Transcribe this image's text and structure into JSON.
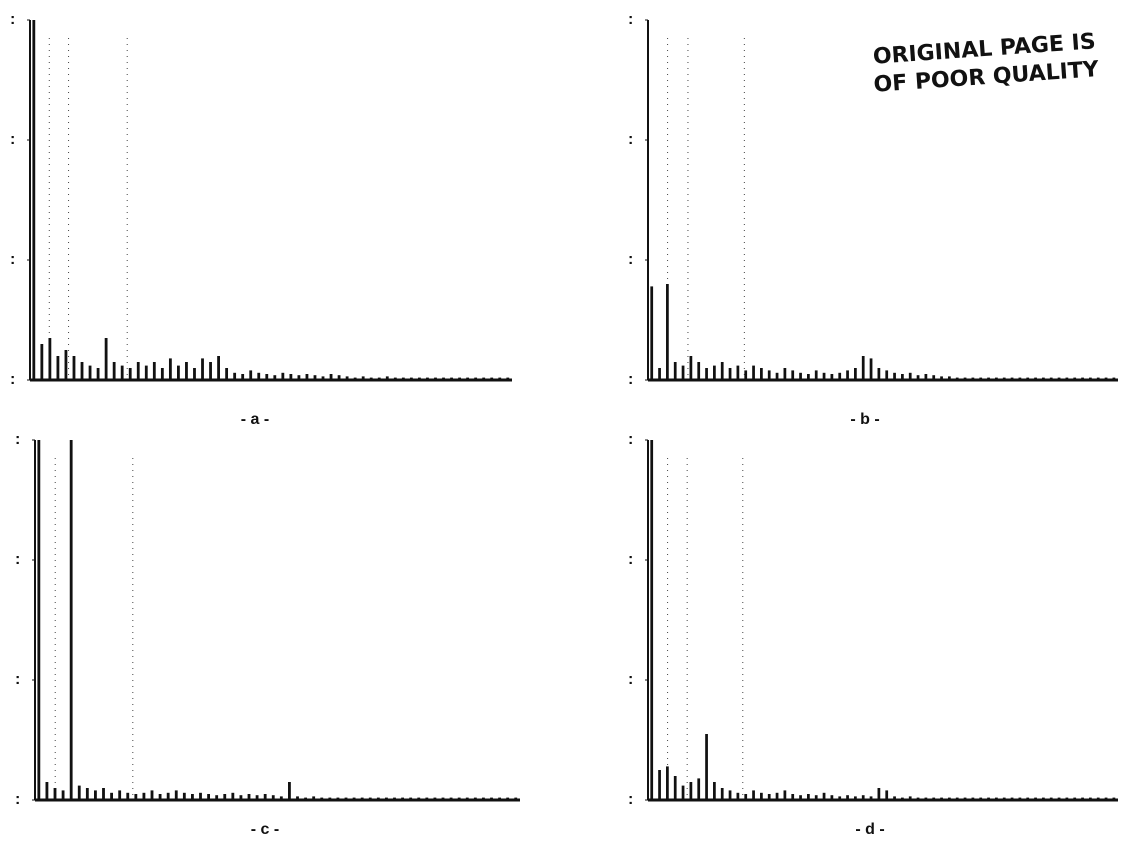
{
  "chart_data": [
    {
      "type": "bar",
      "caption": "- a -",
      "values": [
        3,
        0.3,
        0.35,
        0.2,
        0.25,
        0.2,
        0.15,
        0.12,
        0.1,
        0.35,
        0.15,
        0.12,
        0.1,
        0.15,
        0.12,
        0.15,
        0.1,
        0.18,
        0.12,
        0.15,
        0.1,
        0.18,
        0.15,
        0.2,
        0.1,
        0.06,
        0.05,
        0.08,
        0.06,
        0.05,
        0.04,
        0.06,
        0.05,
        0.04,
        0.05,
        0.04,
        0.03,
        0.05,
        0.04,
        0.03,
        0.02,
        0.03,
        0.02,
        0.02,
        0.03,
        0.02,
        0.02,
        0.02,
        0.02,
        0.02,
        0.02,
        0.02,
        0.02,
        0.02,
        0.02,
        0.02,
        0.02,
        0.02,
        0.02,
        0.02
      ],
      "xlim": [
        0,
        60
      ],
      "ylim": [
        0,
        3
      ],
      "vlines": [
        2.4,
        4.8,
        12.1
      ],
      "yticks": [
        {
          "value": 0,
          "label": ":"
        },
        {
          "value": 1,
          "label": ":"
        },
        {
          "value": 2,
          "label": ":"
        },
        {
          "value": 3,
          "label": ":"
        }
      ],
      "color": "#111"
    },
    {
      "type": "bar",
      "caption": "- b -",
      "values": [
        0.78,
        0.1,
        0.8,
        0.15,
        0.12,
        0.2,
        0.15,
        0.1,
        0.12,
        0.15,
        0.1,
        0.12,
        0.08,
        0.12,
        0.1,
        0.08,
        0.06,
        0.1,
        0.08,
        0.06,
        0.05,
        0.08,
        0.06,
        0.05,
        0.06,
        0.08,
        0.1,
        0.2,
        0.18,
        0.1,
        0.08,
        0.06,
        0.05,
        0.06,
        0.04,
        0.05,
        0.04,
        0.03,
        0.03,
        0.02,
        0.02,
        0.02,
        0.02,
        0.02,
        0.02,
        0.02,
        0.02,
        0.02,
        0.02,
        0.02,
        0.02,
        0.02,
        0.02,
        0.02,
        0.02,
        0.02,
        0.02,
        0.02,
        0.02,
        0.02
      ],
      "xlim": [
        0,
        60
      ],
      "ylim": [
        0,
        3
      ],
      "vlines": [
        2.5,
        5.1,
        12.3
      ],
      "yticks": [
        {
          "value": 0,
          "label": ":"
        },
        {
          "value": 1,
          "label": ":"
        },
        {
          "value": 2,
          "label": ":"
        },
        {
          "value": 3,
          "label": ":"
        }
      ],
      "color": "#111"
    },
    {
      "type": "bar",
      "caption": "- c -",
      "values": [
        3,
        0.15,
        0.1,
        0.08,
        3,
        0.12,
        0.1,
        0.08,
        0.1,
        0.06,
        0.08,
        0.06,
        0.05,
        0.06,
        0.08,
        0.05,
        0.06,
        0.08,
        0.06,
        0.05,
        0.06,
        0.05,
        0.04,
        0.05,
        0.06,
        0.04,
        0.05,
        0.04,
        0.05,
        0.04,
        0.03,
        0.15,
        0.03,
        0.02,
        0.03,
        0.02,
        0.02,
        0.02,
        0.02,
        0.02,
        0.02,
        0.02,
        0.02,
        0.02,
        0.02,
        0.02,
        0.02,
        0.02,
        0.02,
        0.02,
        0.02,
        0.02,
        0.02,
        0.02,
        0.02,
        0.02,
        0.02,
        0.02,
        0.02,
        0.02
      ],
      "xlim": [
        0,
        60
      ],
      "ylim": [
        0,
        3
      ],
      "vlines": [
        2.5,
        12.1
      ],
      "yticks": [
        {
          "value": 0,
          "label": ":"
        },
        {
          "value": 1,
          "label": ":"
        },
        {
          "value": 2,
          "label": ":"
        },
        {
          "value": 3,
          "label": ":"
        }
      ],
      "color": "#111"
    },
    {
      "type": "bar",
      "caption": "- d -",
      "values": [
        3,
        0.25,
        0.28,
        0.2,
        0.12,
        0.15,
        0.18,
        0.55,
        0.15,
        0.1,
        0.08,
        0.06,
        0.05,
        0.08,
        0.06,
        0.05,
        0.06,
        0.08,
        0.05,
        0.04,
        0.05,
        0.04,
        0.06,
        0.04,
        0.03,
        0.04,
        0.03,
        0.04,
        0.03,
        0.1,
        0.08,
        0.03,
        0.02,
        0.03,
        0.02,
        0.02,
        0.02,
        0.02,
        0.02,
        0.02,
        0.02,
        0.02,
        0.02,
        0.02,
        0.02,
        0.02,
        0.02,
        0.02,
        0.02,
        0.02,
        0.02,
        0.02,
        0.02,
        0.02,
        0.02,
        0.02,
        0.02,
        0.02,
        0.02,
        0.02
      ],
      "xlim": [
        0,
        60
      ],
      "ylim": [
        0,
        3
      ],
      "vlines": [
        2.5,
        5.0,
        12.1
      ],
      "yticks": [
        {
          "value": 0,
          "label": ":"
        },
        {
          "value": 1,
          "label": ":"
        },
        {
          "value": 2,
          "label": ":"
        },
        {
          "value": 3,
          "label": ":"
        }
      ],
      "color": "#111"
    }
  ],
  "stamp": [
    "ORIGINAL PAGE IS",
    "OF POOR QUALITY"
  ]
}
